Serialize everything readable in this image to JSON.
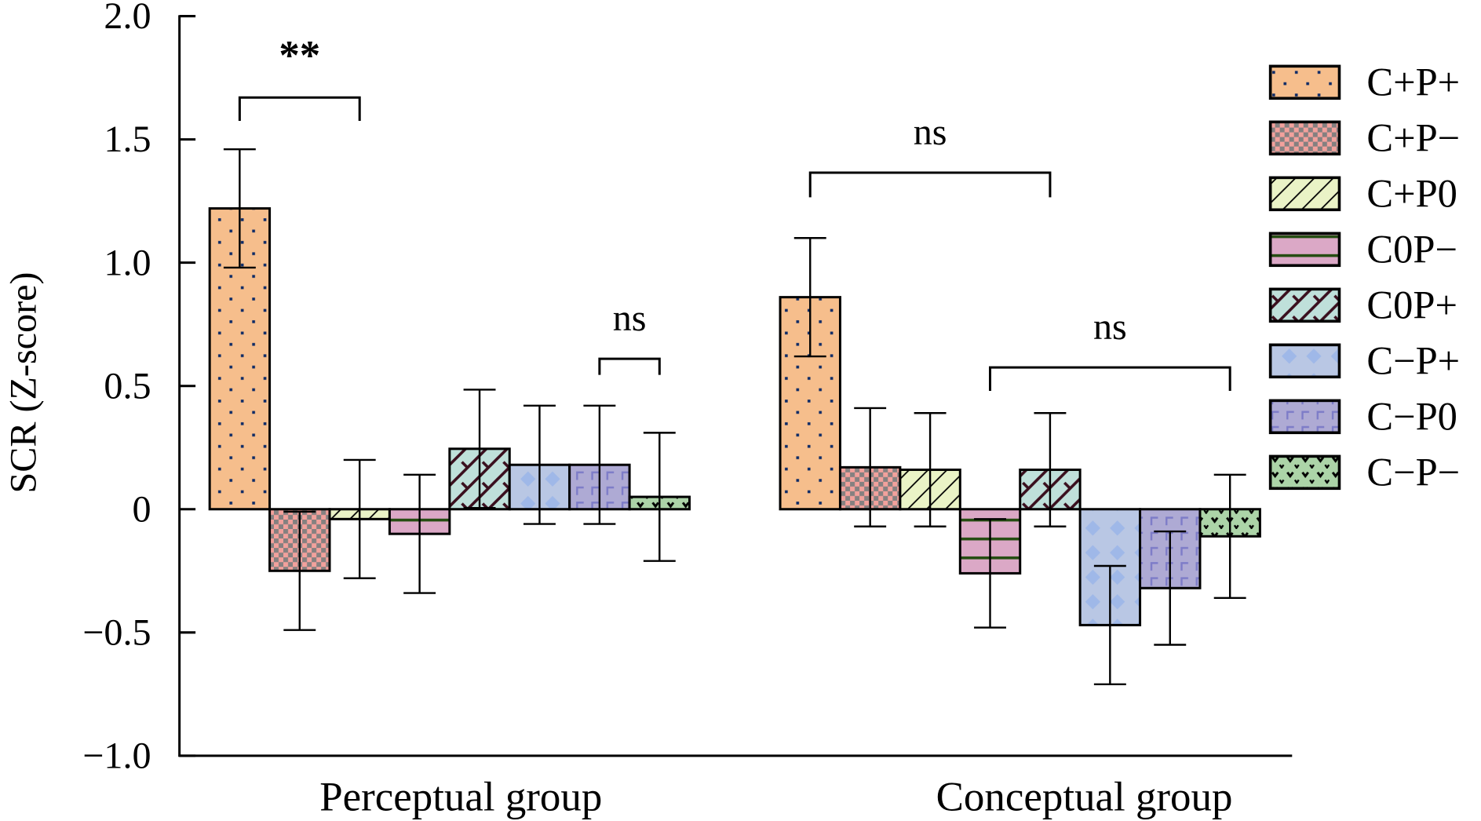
{
  "chart_data": {
    "type": "bar",
    "title": "",
    "xlabel": "",
    "ylabel": "SCR (Z-score)",
    "ylim": [
      -1.0,
      2.0
    ],
    "yticks": [
      {
        "value": 2.0,
        "label": "2.0"
      },
      {
        "value": 1.5,
        "label": "1.5"
      },
      {
        "value": 1.0,
        "label": "1.0"
      },
      {
        "value": 0.5,
        "label": "0.5"
      },
      {
        "value": 0,
        "label": "0"
      },
      {
        "value": -0.5,
        "label": "−0.5"
      },
      {
        "value": -1.0,
        "label": "−1.0"
      }
    ],
    "grid": false,
    "legend_position": "right",
    "categories": [
      "Perceptual group",
      "Conceptual group"
    ],
    "series": [
      {
        "name": "C+P+",
        "color": "#f6be8c",
        "pattern": "dots",
        "values": [
          1.22,
          0.86
        ],
        "errors": [
          0.24,
          0.24
        ]
      },
      {
        "name": "C+P−",
        "color": "#f2a19c",
        "pattern": "checker",
        "values": [
          -0.25,
          0.17
        ],
        "errors": [
          0.24,
          0.24
        ]
      },
      {
        "name": "C+P0",
        "color": "#eaf3c6",
        "pattern": "diagonal",
        "values": [
          -0.04,
          0.16
        ],
        "errors": [
          0.24,
          0.23
        ]
      },
      {
        "name": "C0P−",
        "color": "#dba8c6",
        "pattern": "horizontal",
        "values": [
          -0.1,
          -0.26
        ],
        "errors": [
          0.24,
          0.22
        ]
      },
      {
        "name": "C0P+",
        "color": "#bfe0da",
        "pattern": "weave",
        "values": [
          0.245,
          0.16
        ],
        "errors": [
          0.24,
          0.23
        ]
      },
      {
        "name": "C−P+",
        "color": "#b9c7e4",
        "pattern": "diamond",
        "values": [
          0.18,
          -0.47
        ],
        "errors": [
          0.24,
          0.24
        ]
      },
      {
        "name": "C−P0",
        "color": "#aeaad4",
        "pattern": "corner",
        "values": [
          0.18,
          -0.32
        ],
        "errors": [
          0.24,
          0.23
        ]
      },
      {
        "name": "C−P−",
        "color": "#acd4a8",
        "pattern": "vmarks",
        "values": [
          0.05,
          -0.11
        ],
        "errors": [
          0.26,
          0.25
        ]
      }
    ],
    "annotations": [
      {
        "label": "**",
        "group": 0,
        "from_series": 0,
        "to_series": 2,
        "level": 1.67,
        "leg_bottom": 1.575
      },
      {
        "label": "ns",
        "group": 0,
        "from_series": 6,
        "to_series": 7,
        "level": 0.61,
        "leg_bottom": 0.545
      },
      {
        "label": "ns",
        "group": 1,
        "from_series": 0,
        "to_series": 4,
        "level": 1.365,
        "leg_bottom": 1.265
      },
      {
        "label": "ns",
        "group": 1,
        "from_series": 3,
        "to_series": 7,
        "level": 0.575,
        "leg_bottom": 0.48
      }
    ]
  }
}
